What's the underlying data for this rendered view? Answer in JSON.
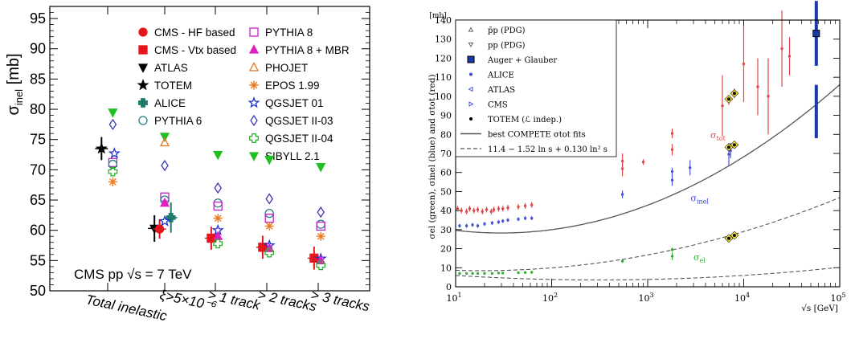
{
  "chart_data": [
    {
      "type": "scatter",
      "ylabel_main": "σ",
      "ylabel_sub": "inel",
      "ylabel_unit": " [mb]",
      "ylim": [
        50,
        97
      ],
      "yticks": [
        50,
        55,
        60,
        65,
        70,
        75,
        80,
        85,
        90,
        95
      ],
      "categories": [
        "Total inelastic",
        "ξ>5×10⁻⁶",
        "> 1 track",
        "> 2 tracks",
        "> 3 tracks"
      ],
      "annotation": "CMS pp √s = 7 TeV",
      "legend": [
        {
          "key": "hf",
          "label": "CMS - HF based",
          "marker": "circle",
          "color": "#e8141c",
          "filled": true
        },
        {
          "key": "vtx",
          "label": "CMS - Vtx based",
          "marker": "square",
          "color": "#e8141c",
          "filled": true
        },
        {
          "key": "atlas",
          "label": "ATLAS",
          "marker": "tri-down",
          "color": "#000000",
          "filled": true
        },
        {
          "key": "totem",
          "label": "TOTEM",
          "marker": "star",
          "color": "#000000",
          "filled": true
        },
        {
          "key": "alice",
          "label": "ALICE",
          "marker": "cross",
          "color": "#1f7a6b",
          "filled": true
        },
        {
          "key": "py6",
          "label": "PYTHIA 6",
          "marker": "circle",
          "color": "#2a7f86",
          "filled": false
        },
        {
          "key": "py8",
          "label": "PYTHIA 8",
          "marker": "square",
          "color": "#c020c8",
          "filled": false
        },
        {
          "key": "py8mbr",
          "label": "PYTHIA 8 + MBR",
          "marker": "tri-up",
          "color": "#e020c0",
          "filled": true
        },
        {
          "key": "phojet",
          "label": "PHOJET",
          "marker": "tri-up",
          "color": "#e87020",
          "filled": false
        },
        {
          "key": "epos",
          "label": "EPOS 1.99",
          "marker": "asterisk",
          "color": "#f07818",
          "filled": false
        },
        {
          "key": "qgs01",
          "label": "QGSJET 01",
          "marker": "star",
          "color": "#2030d0",
          "filled": false
        },
        {
          "key": "qgs03",
          "label": "QGSJET II-03",
          "marker": "diamond",
          "color": "#3a38b8",
          "filled": false
        },
        {
          "key": "qgs04",
          "label": "QGSJET II-04",
          "marker": "cross",
          "color": "#28b028",
          "filled": false
        },
        {
          "key": "sibyll",
          "label": "SIBYLL 2.1",
          "marker": "tri-down",
          "color": "#20c020",
          "filled": true
        }
      ],
      "points": [
        {
          "series": "totem",
          "cat": 0,
          "dx": -0.12,
          "y": 73.5,
          "err": 1.9
        },
        {
          "series": "sibyll",
          "cat": 0,
          "dx": 0.1,
          "y": 79.5
        },
        {
          "series": "qgs03",
          "cat": 0,
          "dx": 0.1,
          "y": 77.5
        },
        {
          "series": "qgs01",
          "cat": 0,
          "dx": 0.13,
          "y": 72.7
        },
        {
          "series": "py8",
          "cat": 0,
          "dx": 0.1,
          "y": 71.2
        },
        {
          "series": "py6",
          "cat": 0,
          "dx": 0.1,
          "y": 70.9
        },
        {
          "series": "qgs04",
          "cat": 0,
          "dx": 0.1,
          "y": 69.7
        },
        {
          "series": "epos",
          "cat": 0,
          "dx": 0.1,
          "y": 68.0
        },
        {
          "series": "atlas",
          "cat": 1,
          "dx": -0.2,
          "y": 60.3,
          "err": 2.2
        },
        {
          "series": "hf",
          "cat": 1,
          "dx": -0.1,
          "y": 60.2,
          "err": 1.6
        },
        {
          "series": "alice",
          "cat": 1,
          "dx": 0.12,
          "y": 62.1,
          "err": 2.5
        },
        {
          "series": "sibyll",
          "cat": 1,
          "dx": 0.0,
          "y": 75.5
        },
        {
          "series": "phojet",
          "cat": 1,
          "dx": 0.0,
          "y": 74.5
        },
        {
          "series": "qgs03",
          "cat": 1,
          "dx": 0.0,
          "y": 70.7
        },
        {
          "series": "py8",
          "cat": 1,
          "dx": 0.0,
          "y": 65.5
        },
        {
          "series": "py6",
          "cat": 1,
          "dx": 0.0,
          "y": 65.0
        },
        {
          "series": "py8mbr",
          "cat": 1,
          "dx": 0.0,
          "y": 64.5
        },
        {
          "series": "qgs01",
          "cat": 1,
          "dx": 0.0,
          "y": 61.5
        },
        {
          "series": "vtx",
          "cat": 2,
          "dx": -0.08,
          "y": 58.7,
          "err": 1.9
        },
        {
          "series": "sibyll",
          "cat": 2,
          "dx": 0.05,
          "y": 72.5
        },
        {
          "series": "qgs03",
          "cat": 2,
          "dx": 0.05,
          "y": 67.0
        },
        {
          "series": "py6",
          "cat": 2,
          "dx": 0.05,
          "y": 64.5
        },
        {
          "series": "py8",
          "cat": 2,
          "dx": 0.05,
          "y": 64.0
        },
        {
          "series": "epos",
          "cat": 2,
          "dx": 0.05,
          "y": 62.0
        },
        {
          "series": "qgs01",
          "cat": 2,
          "dx": 0.05,
          "y": 60.0
        },
        {
          "series": "py8mbr",
          "cat": 2,
          "dx": 0.05,
          "y": 59.0
        },
        {
          "series": "qgs04",
          "cat": 2,
          "dx": 0.05,
          "y": 57.8
        },
        {
          "series": "vtx",
          "cat": 3,
          "dx": -0.08,
          "y": 57.2,
          "err": 1.9
        },
        {
          "series": "sibyll",
          "cat": 3,
          "dx": 0.05,
          "y": 71.7
        },
        {
          "series": "qgs03",
          "cat": 3,
          "dx": 0.05,
          "y": 65.2
        },
        {
          "series": "py6",
          "cat": 3,
          "dx": 0.05,
          "y": 62.8
        },
        {
          "series": "py8",
          "cat": 3,
          "dx": 0.05,
          "y": 62.0
        },
        {
          "series": "epos",
          "cat": 3,
          "dx": 0.05,
          "y": 60.7
        },
        {
          "series": "qgs01",
          "cat": 3,
          "dx": 0.05,
          "y": 57.5
        },
        {
          "series": "py8mbr",
          "cat": 3,
          "dx": 0.05,
          "y": 57.0
        },
        {
          "series": "qgs04",
          "cat": 3,
          "dx": 0.05,
          "y": 56.3
        },
        {
          "series": "vtx",
          "cat": 4,
          "dx": -0.08,
          "y": 55.4,
          "err": 1.9
        },
        {
          "series": "sibyll",
          "cat": 4,
          "dx": 0.05,
          "y": 70.5
        },
        {
          "series": "qgs03",
          "cat": 4,
          "dx": 0.05,
          "y": 63.0
        },
        {
          "series": "py6",
          "cat": 4,
          "dx": 0.05,
          "y": 61.0
        },
        {
          "series": "py8",
          "cat": 4,
          "dx": 0.05,
          "y": 60.7
        },
        {
          "series": "epos",
          "cat": 4,
          "dx": 0.05,
          "y": 59.0
        },
        {
          "series": "qgs01",
          "cat": 4,
          "dx": 0.05,
          "y": 55.3
        },
        {
          "series": "py8mbr",
          "cat": 4,
          "dx": 0.05,
          "y": 55.0
        },
        {
          "series": "qgs04",
          "cat": 4,
          "dx": 0.05,
          "y": 54.2
        }
      ]
    },
    {
      "type": "scatter",
      "xscale": "log",
      "xlim": [
        10,
        100000
      ],
      "ylim": [
        0,
        140
      ],
      "yticks": [
        0,
        10,
        20,
        30,
        40,
        50,
        60,
        70,
        80,
        90,
        100,
        110,
        120,
        130,
        140
      ],
      "xticks": [
        10,
        100,
        1000,
        10000,
        100000
      ],
      "xtick_labels": [
        [
          "10",
          "1"
        ],
        [
          "10",
          "2"
        ],
        [
          "10",
          "3"
        ],
        [
          "10",
          "4"
        ],
        [
          "10",
          "5"
        ]
      ],
      "xlabel": "√s  [GeV]",
      "ylabel": "σel (green), σinel (blue) and σtot (red)",
      "yunit": "[mb]",
      "curve_labels": {
        "tot": "σtot",
        "inel": "σinel",
        "el": "σel"
      },
      "legend": [
        {
          "label": "p̄p (PDG)",
          "marker": "tri-up-open",
          "color": "#555555"
        },
        {
          "label": "pp (PDG)",
          "marker": "tri-down-open",
          "color": "#555555"
        },
        {
          "label": "Auger + Glauber",
          "marker": "square-blue",
          "color": "#1a3aa8"
        },
        {
          "label": "ALICE",
          "marker": "dot",
          "color": "#3a48d8"
        },
        {
          "label": "ATLAS",
          "marker": "tri-left-open",
          "color": "#3a48d8"
        },
        {
          "label": "CMS",
          "marker": "tri-right-open",
          "color": "#3a48d8"
        },
        {
          "label": "TOTEM (ℒ indep.)",
          "marker": "dot",
          "color": "#000000"
        },
        {
          "label": "best COMPETE σtot fits",
          "marker": "line-solid",
          "color": "#555555"
        },
        {
          "label": "11.4 − 1.52 ln s + 0.130 ln² s",
          "marker": "line-dashed",
          "color": "#555555"
        }
      ],
      "series": [
        {
          "name": "σtot data",
          "color": "#e04848",
          "points": [
            [
              10.5,
              41,
              1.5
            ],
            [
              11.5,
              40,
              1.5
            ],
            [
              13,
              39.5,
              1.5
            ],
            [
              14,
              41,
              1.5
            ],
            [
              15.5,
              40,
              1.5
            ],
            [
              17,
              40.5,
              1.5
            ],
            [
              19,
              39.5,
              1.5
            ],
            [
              21,
              40.5,
              1.5
            ],
            [
              23.5,
              39.5,
              1.5
            ],
            [
              25,
              40.5,
              1.5
            ],
            [
              28,
              41,
              1.5
            ],
            [
              31,
              41,
              1.5
            ],
            [
              35,
              41.5,
              1.5
            ],
            [
              45,
              42,
              1.5
            ],
            [
              53,
              42.5,
              1.5
            ],
            [
              62,
              43,
              1.5
            ],
            [
              546,
              62,
              4
            ],
            [
              546,
              66,
              4
            ],
            [
              900,
              65.5,
              1.5
            ],
            [
              1800,
              72,
              3
            ],
            [
              1800,
              80.5,
              2.5
            ],
            [
              6000,
              95,
              16
            ],
            [
              7000,
              98,
              2.5
            ],
            [
              8000,
              101.5,
              2.5
            ],
            [
              10000,
              117,
              20
            ],
            [
              14000,
              105,
              15
            ],
            [
              18000,
              100,
              20
            ],
            [
              25000,
              125,
              20
            ],
            [
              30000,
              121,
              10
            ],
            [
              57000,
              133,
              15
            ]
          ]
        },
        {
          "name": "σinel data",
          "color": "#4454d8",
          "points": [
            [
              11,
              32,
              1
            ],
            [
              13,
              32,
              1
            ],
            [
              15,
              32.5,
              1
            ],
            [
              17,
              32,
              1
            ],
            [
              20,
              33,
              1
            ],
            [
              24,
              33.5,
              1
            ],
            [
              28,
              34,
              1
            ],
            [
              31,
              34.5,
              1
            ],
            [
              35,
              35,
              1
            ],
            [
              45,
              35.5,
              1
            ],
            [
              53,
              36,
              1
            ],
            [
              62,
              36,
              1
            ],
            [
              546,
              48.5,
              2
            ],
            [
              1800,
              56,
              3
            ],
            [
              1800,
              60.5,
              2
            ],
            [
              2760,
              62.5,
              4
            ],
            [
              7000,
              69.5,
              6
            ],
            [
              7000,
              73,
              1.5
            ],
            [
              7300,
              71.5,
              4
            ],
            [
              8000,
              74.5,
              1.5
            ],
            [
              57000,
              92,
              14
            ]
          ]
        },
        {
          "name": "σel data",
          "color": "#30b030",
          "points": [
            [
              11,
              7,
              0.5
            ],
            [
              13,
              7,
              0.5
            ],
            [
              15,
              7,
              0.5
            ],
            [
              17,
              7,
              0.5
            ],
            [
              20,
              7,
              0.5
            ],
            [
              24,
              7,
              0.5
            ],
            [
              28,
              7.2,
              0.5
            ],
            [
              31,
              7.2,
              0.5
            ],
            [
              45,
              7.4,
              0.5
            ],
            [
              53,
              7.5,
              0.5
            ],
            [
              62,
              7.6,
              0.5
            ],
            [
              546,
              13.5,
              1
            ],
            [
              1800,
              16,
              2
            ],
            [
              1800,
              19.5,
              1
            ],
            [
              7000,
              25.5,
              1
            ],
            [
              8000,
              27,
              1
            ]
          ]
        },
        {
          "name": "TOTEM",
          "color": "#000000",
          "points": [
            [
              7000,
              98.5,
              1.5
            ],
            [
              8000,
              101.5,
              1.2
            ],
            [
              7000,
              73.2,
              1.2
            ],
            [
              8000,
              74.5,
              1.2
            ],
            [
              7000,
              25.4,
              0.8
            ],
            [
              8000,
              27,
              0.8
            ]
          ]
        },
        {
          "name": "Auger",
          "color": "#1a3aa8",
          "points": [
            [
              57000,
              133,
              17
            ],
            [
              57000,
              92,
              14
            ]
          ]
        }
      ]
    }
  ]
}
